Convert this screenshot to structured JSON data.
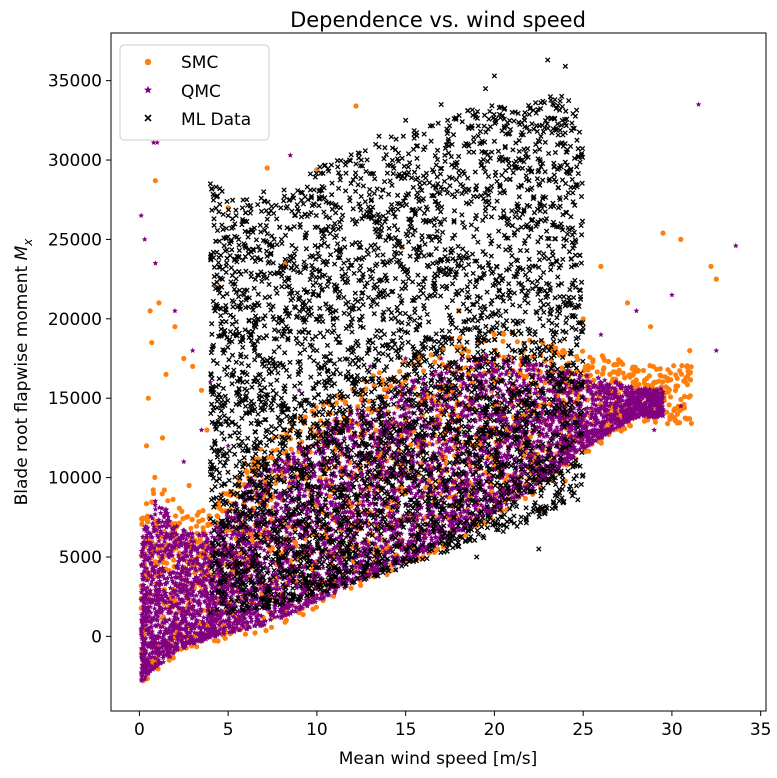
{
  "chart_data": {
    "type": "scatter",
    "title": "Dependence vs. wind speed",
    "xlabel": "Mean wind speed [m/s]",
    "ylabel_text": "Blade root flapwise moment ",
    "ylabel_math": "M",
    "ylabel_sub": "x",
    "xlim": [
      -1.6,
      35.3
    ],
    "ylim": [
      -4700,
      38000
    ],
    "xticks": [
      0,
      5,
      10,
      15,
      20,
      25,
      30,
      35
    ],
    "yticks": [
      0,
      5000,
      10000,
      15000,
      20000,
      25000,
      30000,
      35000
    ],
    "grid": false,
    "legend_position": "top-left",
    "series": [
      {
        "name": "SMC",
        "marker": "circle",
        "color": "#ff7f0e",
        "points": [
          [
            0.2,
            -2800
          ],
          [
            0.3,
            6000
          ],
          [
            0.4,
            12000
          ],
          [
            0.5,
            15000
          ],
          [
            0.6,
            20500
          ],
          [
            0.7,
            18500
          ],
          [
            0.9,
            28700
          ],
          [
            1.1,
            21000
          ],
          [
            1.3,
            12500
          ],
          [
            1.5,
            16500
          ],
          [
            2.0,
            19500
          ],
          [
            2.5,
            17500
          ],
          [
            3.0,
            17000
          ],
          [
            3.5,
            15500
          ],
          [
            4.5,
            22000
          ],
          [
            5.0,
            27000
          ],
          [
            7.2,
            29500
          ],
          [
            8.2,
            23500
          ],
          [
            10.0,
            29400
          ],
          [
            12.2,
            33400
          ],
          [
            14.8,
            24500
          ],
          [
            18.0,
            20500
          ],
          [
            21.5,
            17500
          ],
          [
            25.0,
            20000
          ],
          [
            26.0,
            23300
          ],
          [
            27.5,
            21000
          ],
          [
            29.0,
            16000
          ],
          [
            29.5,
            25400
          ],
          [
            30.5,
            25000
          ],
          [
            32.2,
            23300
          ],
          [
            32.5,
            22500
          ],
          [
            31.0,
            18000
          ],
          [
            27.5,
            13500
          ],
          [
            24.0,
            9800
          ],
          [
            20.0,
            8000
          ],
          [
            16.0,
            5000
          ],
          [
            13.0,
            3800
          ],
          [
            9.0,
            1500
          ],
          [
            6.0,
            600
          ],
          [
            4.0,
            100
          ],
          [
            2.0,
            -900
          ],
          [
            1.0,
            -2000
          ],
          [
            0.5,
            2500
          ],
          [
            0.8,
            9000
          ],
          [
            1.2,
            4000
          ],
          [
            1.8,
            6500
          ],
          [
            2.8,
            9500
          ],
          [
            3.8,
            13000
          ],
          [
            22.5,
            14500
          ],
          [
            26.5,
            16500
          ],
          [
            28.8,
            19500
          ],
          [
            19.0,
            12500
          ],
          [
            11.0,
            5500
          ],
          [
            15.0,
            9000
          ]
        ]
      },
      {
        "name": "QMC",
        "marker": "star",
        "color": "#800080",
        "points": [
          [
            0.1,
            26500
          ],
          [
            0.3,
            25000
          ],
          [
            0.8,
            31100
          ],
          [
            1.0,
            31100
          ],
          [
            0.9,
            23500
          ],
          [
            2.0,
            20500
          ],
          [
            3.0,
            18000
          ],
          [
            4.0,
            16000
          ],
          [
            8.5,
            30300
          ],
          [
            31.5,
            33500
          ],
          [
            33.6,
            24600
          ],
          [
            32.5,
            18000
          ],
          [
            30.0,
            21500
          ],
          [
            28.0,
            20500
          ],
          [
            26.0,
            19000
          ],
          [
            24.0,
            16500
          ],
          [
            22.0,
            13500
          ],
          [
            20.0,
            10500
          ],
          [
            18.0,
            8000
          ],
          [
            16.0,
            6200
          ],
          [
            14.0,
            4800
          ],
          [
            12.0,
            3600
          ],
          [
            10.0,
            2600
          ],
          [
            8.0,
            1700
          ],
          [
            6.0,
            900
          ],
          [
            4.0,
            300
          ],
          [
            2.0,
            -700
          ],
          [
            1.0,
            -1800
          ],
          [
            0.3,
            -2700
          ],
          [
            0.5,
            4000
          ],
          [
            1.5,
            8000
          ],
          [
            2.5,
            11000
          ],
          [
            3.5,
            13000
          ],
          [
            5.0,
            12000
          ],
          [
            7.0,
            14500
          ],
          [
            9.0,
            15500
          ],
          [
            11.0,
            16500
          ],
          [
            13.0,
            17000
          ],
          [
            15.0,
            17500
          ],
          [
            17.0,
            17500
          ],
          [
            19.0,
            17000
          ],
          [
            21.0,
            16500
          ],
          [
            23.0,
            15500
          ],
          [
            25.0,
            14000
          ],
          [
            27.0,
            15000
          ],
          [
            29.0,
            13000
          ],
          [
            30.5,
            14500
          ]
        ]
      },
      {
        "name": "ML Data",
        "marker": "x",
        "color": "#000000",
        "points": [
          [
            4.0,
            1500
          ],
          [
            4.0,
            28500
          ],
          [
            5.0,
            26500
          ],
          [
            6.0,
            23000
          ],
          [
            7.0,
            28000
          ],
          [
            8.0,
            25000
          ],
          [
            9.5,
            27500
          ],
          [
            11.0,
            26000
          ],
          [
            12.5,
            30000
          ],
          [
            13.5,
            31500
          ],
          [
            15.0,
            32500
          ],
          [
            16.0,
            29000
          ],
          [
            17.0,
            33500
          ],
          [
            18.5,
            31000
          ],
          [
            19.5,
            34500
          ],
          [
            20.0,
            35300
          ],
          [
            21.0,
            33000
          ],
          [
            22.0,
            29500
          ],
          [
            23.0,
            36300
          ],
          [
            24.0,
            35900
          ],
          [
            24.5,
            32000
          ],
          [
            24.8,
            24000
          ],
          [
            24.7,
            8600
          ],
          [
            22.5,
            5500
          ],
          [
            20.5,
            7000
          ],
          [
            19.0,
            5000
          ],
          [
            17.0,
            6000
          ],
          [
            15.0,
            5500
          ],
          [
            13.0,
            4500
          ],
          [
            11.0,
            3200
          ],
          [
            9.0,
            2500
          ],
          [
            7.0,
            2000
          ],
          [
            5.0,
            1500
          ],
          [
            6.0,
            12000
          ],
          [
            8.0,
            15000
          ],
          [
            10.0,
            18000
          ],
          [
            12.0,
            20000
          ],
          [
            14.0,
            21500
          ],
          [
            16.0,
            22000
          ],
          [
            18.0,
            20500
          ],
          [
            20.0,
            18000
          ],
          [
            22.0,
            15000
          ],
          [
            23.5,
            12000
          ],
          [
            5.5,
            8000
          ],
          [
            7.5,
            10000
          ],
          [
            9.5,
            12500
          ],
          [
            11.5,
            14000
          ],
          [
            13.5,
            16000
          ],
          [
            15.5,
            17500
          ],
          [
            17.5,
            16000
          ],
          [
            19.5,
            13500
          ],
          [
            21.5,
            11000
          ]
        ]
      }
    ],
    "clouds": [
      {
        "series": "QMC",
        "count": 5200,
        "outline_x": [
          0,
          1,
          2,
          3,
          4,
          5,
          6,
          7,
          8,
          10,
          12,
          14,
          16,
          18,
          20,
          22,
          23,
          24,
          25,
          26,
          27,
          28
        ],
        "outline_lo": [
          -2900,
          -1900,
          -1100,
          -500,
          -100,
          200,
          400,
          700,
          1100,
          2200,
          3300,
          4300,
          5300,
          6500,
          7800,
          9200,
          10000,
          10800,
          11800,
          12500,
          13200,
          13800
        ],
        "outline_hi": [
          6000,
          9000,
          7000,
          6500,
          6500,
          8000,
          9500,
          10500,
          11500,
          13000,
          14500,
          15500,
          16500,
          17500,
          17800,
          17500,
          17000,
          16800,
          16500,
          16300,
          16000,
          15600
        ],
        "x_range": [
          0.1,
          29.5
        ],
        "jitter": 1100
      },
      {
        "series": "ML Data",
        "count": 4600,
        "outline_x": [
          4,
          6,
          8,
          10,
          12,
          14,
          16,
          18,
          20,
          22,
          23,
          24,
          25
        ],
        "outline_lo": [
          1500,
          1500,
          2000,
          2600,
          3300,
          4000,
          4800,
          5600,
          6400,
          7200,
          7800,
          8400,
          9000
        ],
        "outline_hi": [
          28500,
          27500,
          28000,
          29500,
          30500,
          31500,
          32000,
          33000,
          33500,
          33500,
          34000,
          34500,
          32500
        ],
        "x_range": [
          4.0,
          25.0
        ],
        "jitter": 900
      }
    ]
  }
}
